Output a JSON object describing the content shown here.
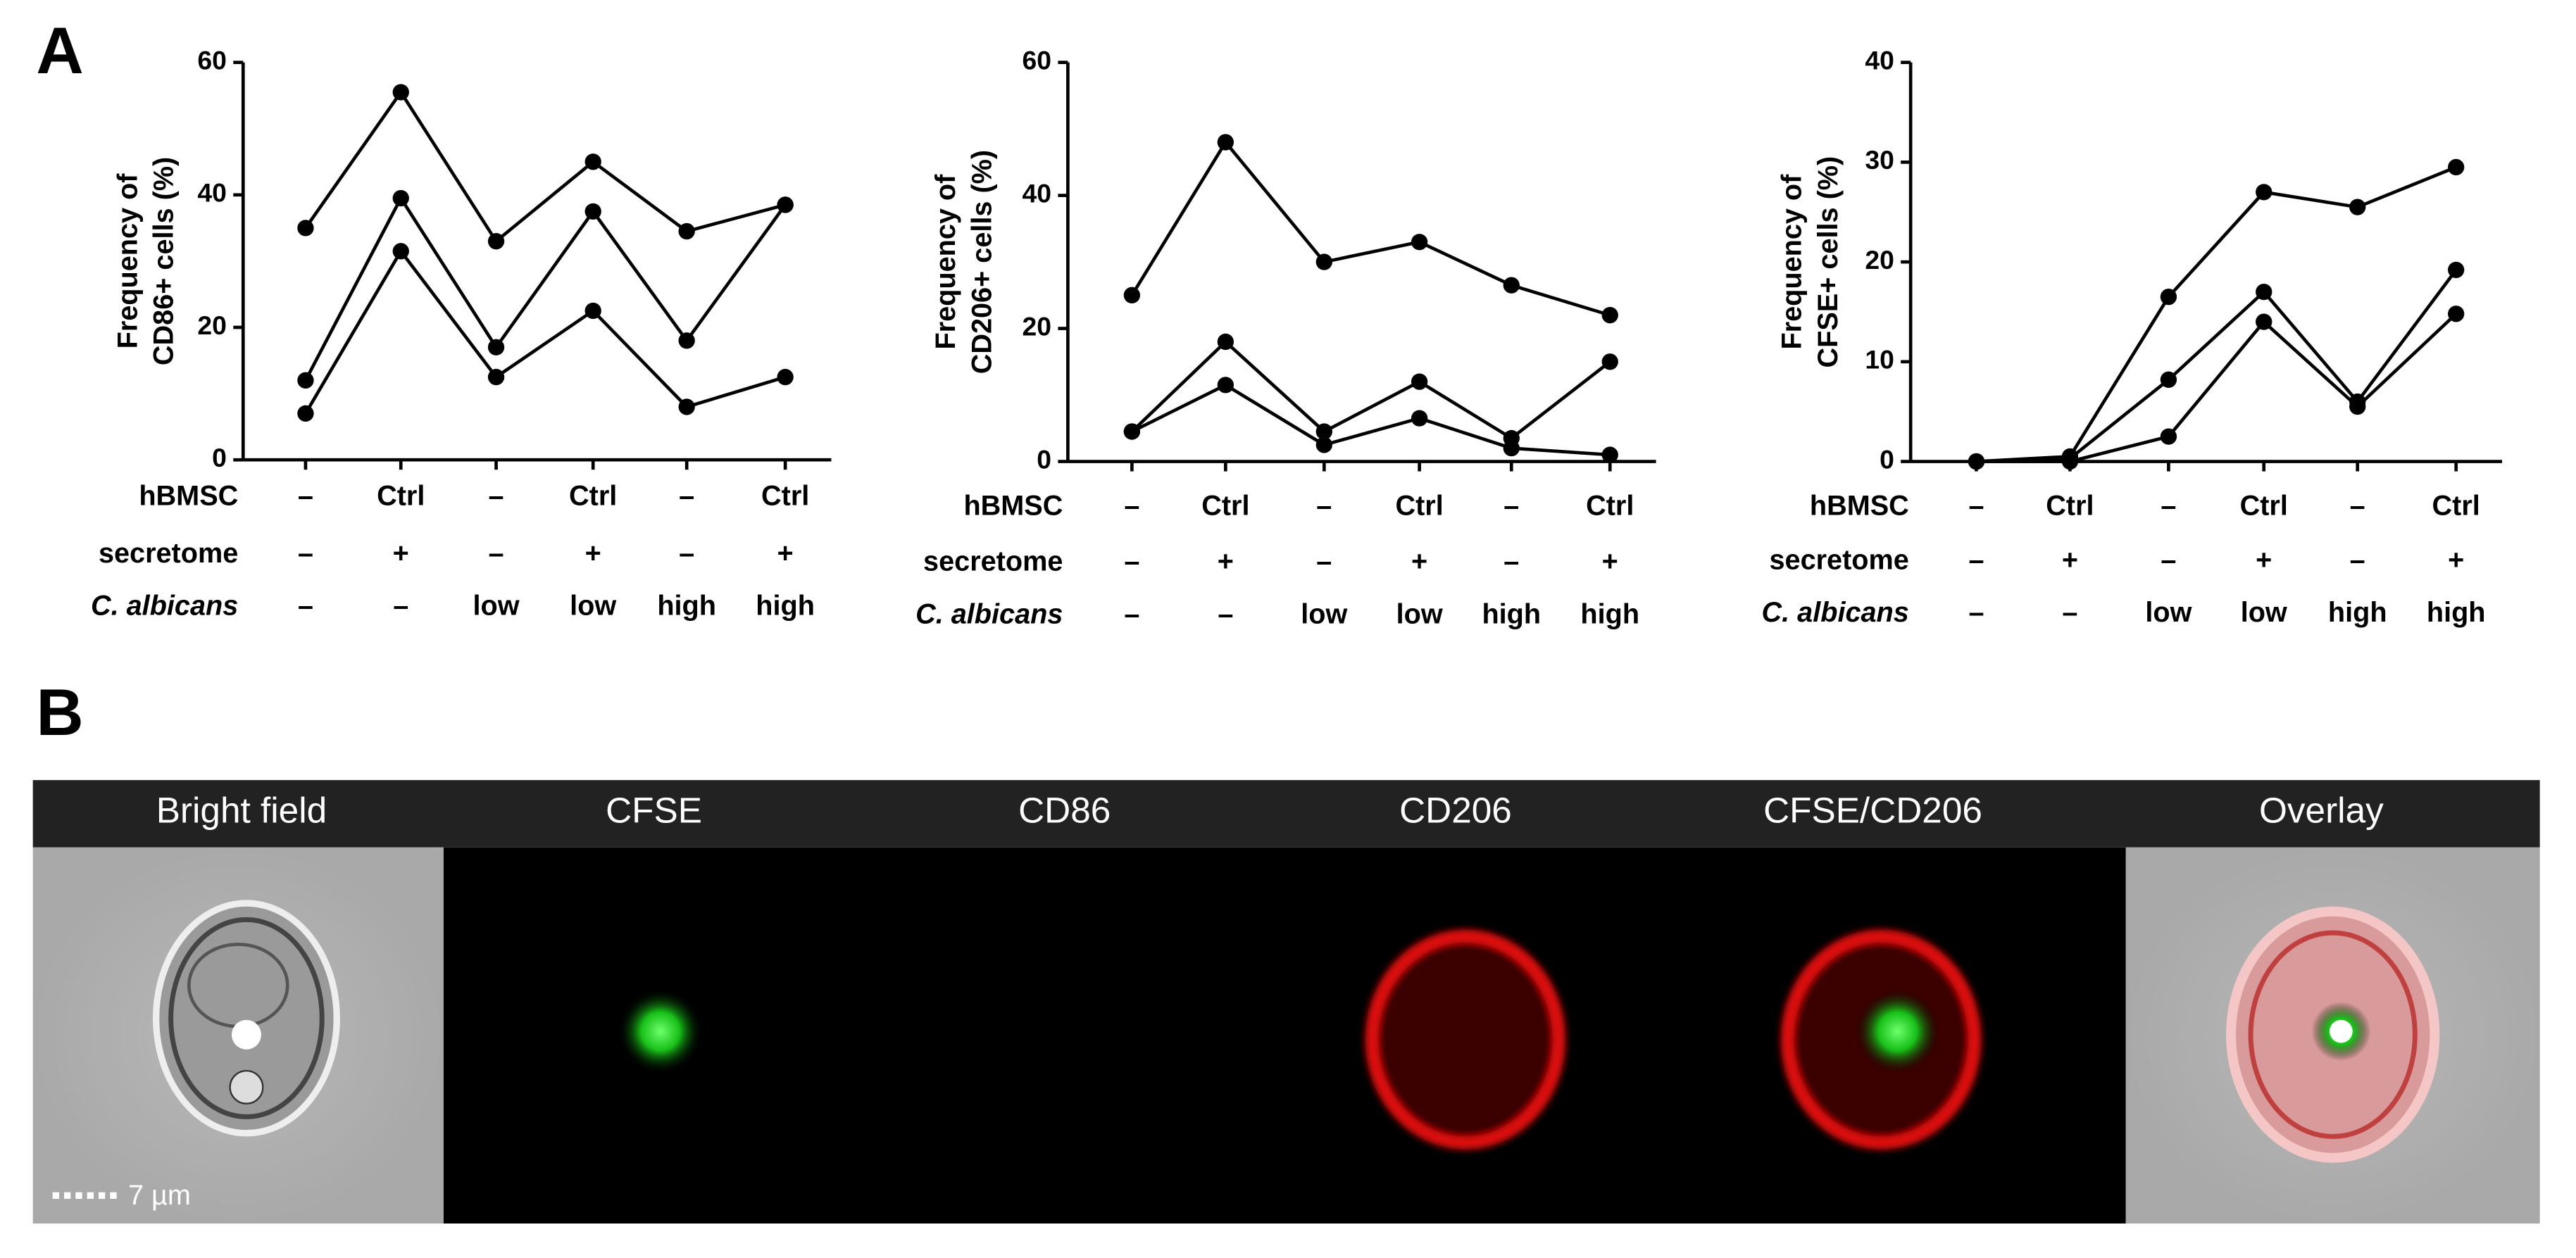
{
  "panel_a": {
    "label": "A"
  },
  "chart_data": [
    {
      "type": "line",
      "ylabel": [
        "Frequency of",
        "CD86+ cells (%)"
      ],
      "ylim": [
        0,
        60
      ],
      "yticks": [
        0,
        20,
        40,
        60
      ],
      "category_rows": [
        {
          "name": "hBMSC",
          "labels": [
            "–",
            "Ctrl",
            "–",
            "Ctrl",
            "–",
            "Ctrl"
          ]
        },
        {
          "name": "secretome",
          "labels": [
            "–",
            "+",
            "–",
            "+",
            "–",
            "+"
          ]
        },
        {
          "name": "C. albicans",
          "labels": [
            "–",
            "–",
            "low",
            "low",
            "high",
            "high"
          ]
        }
      ],
      "series": [
        {
          "color": "#000000",
          "values": [
            35,
            55.5,
            33,
            45,
            34.5,
            38.5
          ]
        },
        {
          "color": "#000000",
          "values": [
            12,
            39.5,
            17,
            37.5,
            18,
            38.5
          ]
        },
        {
          "color": "#000000",
          "values": [
            7,
            31.5,
            12.5,
            22.5,
            8,
            12.5
          ]
        }
      ]
    },
    {
      "type": "line",
      "ylabel": [
        "Frequency of",
        "CD206+ cells (%)"
      ],
      "ylim": [
        0,
        60
      ],
      "yticks": [
        0,
        20,
        40,
        60
      ],
      "category_rows": [
        {
          "name": "hBMSC",
          "labels": [
            "–",
            "Ctrl",
            "–",
            "Ctrl",
            "–",
            "Ctrl"
          ]
        },
        {
          "name": "secretome",
          "labels": [
            "–",
            "+",
            "–",
            "+",
            "–",
            "+"
          ]
        },
        {
          "name": "C. albicans",
          "labels": [
            "–",
            "–",
            "low",
            "low",
            "high",
            "high"
          ]
        }
      ],
      "series": [
        {
          "color": "#000000",
          "values": [
            25,
            48,
            30,
            33,
            26.5,
            22
          ]
        },
        {
          "color": "#000000",
          "values": [
            4.5,
            18,
            4.5,
            12,
            3.5,
            15
          ]
        },
        {
          "color": "#000000",
          "values": [
            4.5,
            11.5,
            2.5,
            6.5,
            2,
            1
          ]
        }
      ]
    },
    {
      "type": "line",
      "ylabel": [
        "Frequency of",
        "CFSE+ cells (%)"
      ],
      "ylim": [
        0,
        40
      ],
      "yticks": [
        0,
        10,
        20,
        30,
        40
      ],
      "category_rows": [
        {
          "name": "hBMSC",
          "labels": [
            "–",
            "Ctrl",
            "–",
            "Ctrl",
            "–",
            "Ctrl"
          ]
        },
        {
          "name": "secretome",
          "labels": [
            "–",
            "+",
            "–",
            "+",
            "–",
            "+"
          ]
        },
        {
          "name": "C. albicans",
          "labels": [
            "–",
            "–",
            "low",
            "low",
            "high",
            "high"
          ]
        }
      ],
      "series": [
        {
          "color": "#000000",
          "values": [
            0,
            0.5,
            16.5,
            27,
            25.5,
            29.5
          ]
        },
        {
          "color": "#000000",
          "values": [
            0,
            0.3,
            8.2,
            17,
            6,
            19.2
          ]
        },
        {
          "color": "#000000",
          "values": [
            0,
            0,
            2.5,
            14,
            5.5,
            14.8
          ]
        }
      ]
    }
  ],
  "panel_b": {
    "label": "B",
    "headers": [
      "Bright field",
      "CFSE",
      "CD86",
      "CD206",
      "CFSE/CD206",
      "Overlay"
    ],
    "scale_bar": "7 µm"
  }
}
